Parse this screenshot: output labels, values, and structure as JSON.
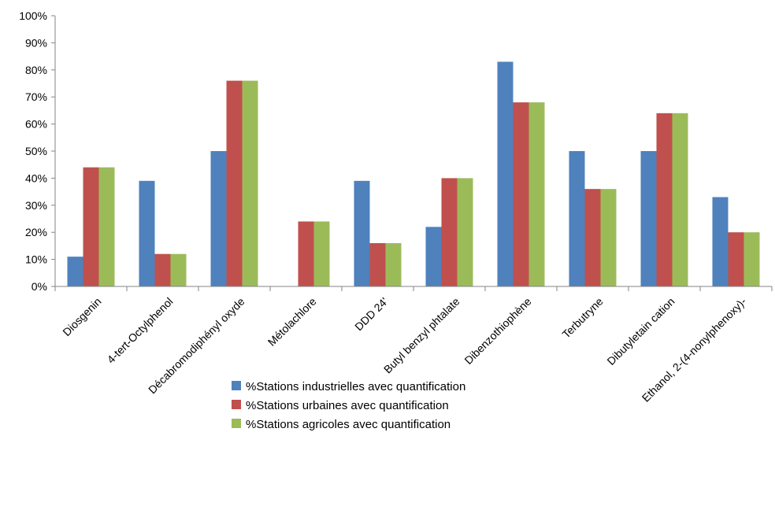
{
  "chart_data": {
    "type": "bar",
    "title": "",
    "xlabel": "",
    "ylabel": "",
    "ylim": [
      0,
      100
    ],
    "y_ticks": [
      "0%",
      "10%",
      "20%",
      "30%",
      "40%",
      "50%",
      "60%",
      "70%",
      "80%",
      "90%",
      "100%"
    ],
    "categories": [
      "Diosgenin",
      "4-tert-Octylphenol",
      "Décabromodiphényl oxyde",
      "Métolachlore",
      "DDD 24'",
      "Butyl benzyl phtalate",
      "Dibenzothiophène",
      "Terbutryne",
      "Dibutyletain cation",
      "Ethanol, 2-(4-nonylphenoxy)-"
    ],
    "series": [
      {
        "name": "%Stations industrielles avec quantification",
        "color": "#4F81BD",
        "values": [
          11,
          39,
          50,
          0,
          39,
          22,
          83,
          50,
          50,
          33
        ]
      },
      {
        "name": "%Stations urbaines avec quantification",
        "color": "#C0504D",
        "values": [
          44,
          12,
          76,
          24,
          16,
          40,
          68,
          36,
          64,
          20
        ]
      },
      {
        "name": "%Stations agricoles avec quantification",
        "color": "#9BBB59",
        "values": [
          44,
          12,
          76,
          24,
          16,
          40,
          68,
          36,
          64,
          20
        ]
      }
    ],
    "legend_position": "bottom",
    "grid": false
  }
}
